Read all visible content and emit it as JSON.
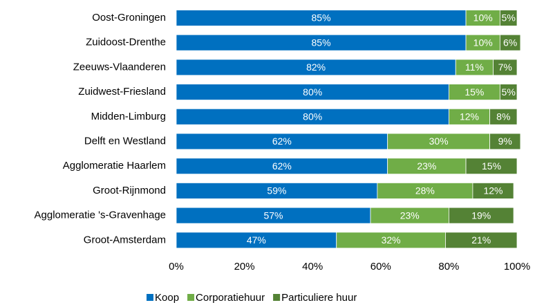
{
  "chart_data": {
    "type": "bar",
    "orientation": "horizontal",
    "stacked": true,
    "categories": [
      "Oost-Groningen",
      "Zuidoost-Drenthe",
      "Zeeuws-Vlaanderen",
      "Zuidwest-Friesland",
      "Midden-Limburg",
      "Delft en Westland",
      "Agglomeratie Haarlem",
      "Groot-Rijnmond",
      "Agglomeratie 's-Gravenhage",
      "Groot-Amsterdam"
    ],
    "series": [
      {
        "name": "Koop",
        "color": "#0070c0",
        "values": [
          85,
          85,
          82,
          80,
          80,
          62,
          62,
          59,
          57,
          47
        ],
        "value_labels": [
          "85%",
          "85%",
          "82%",
          "80%",
          "80%",
          "62%",
          "62%",
          "59%",
          "57%",
          "47%"
        ]
      },
      {
        "name": "Corporatiehuur",
        "color": "#70ad47",
        "values": [
          10,
          10,
          11,
          15,
          12,
          30,
          23,
          28,
          23,
          32
        ],
        "value_labels": [
          "10%",
          "10%",
          "11%",
          "15%",
          "12%",
          "30%",
          "23%",
          "28%",
          "23%",
          "32%"
        ]
      },
      {
        "name": "Particuliere huur",
        "color": "#548235",
        "values": [
          5,
          6,
          7,
          5,
          8,
          9,
          15,
          12,
          19,
          21
        ],
        "value_labels": [
          "5%",
          "6%",
          "7%",
          "5%",
          "8%",
          "9%",
          "15%",
          "12%",
          "19%",
          "21%"
        ]
      }
    ],
    "xlim": [
      0,
      100
    ],
    "xticks": [
      {
        "value": 0,
        "label": "0%"
      },
      {
        "value": 20,
        "label": "20%"
      },
      {
        "value": 40,
        "label": "40%"
      },
      {
        "value": 60,
        "label": "60%"
      },
      {
        "value": 80,
        "label": "80%"
      },
      {
        "value": 100,
        "label": "100%"
      }
    ],
    "legend": "bottom"
  }
}
